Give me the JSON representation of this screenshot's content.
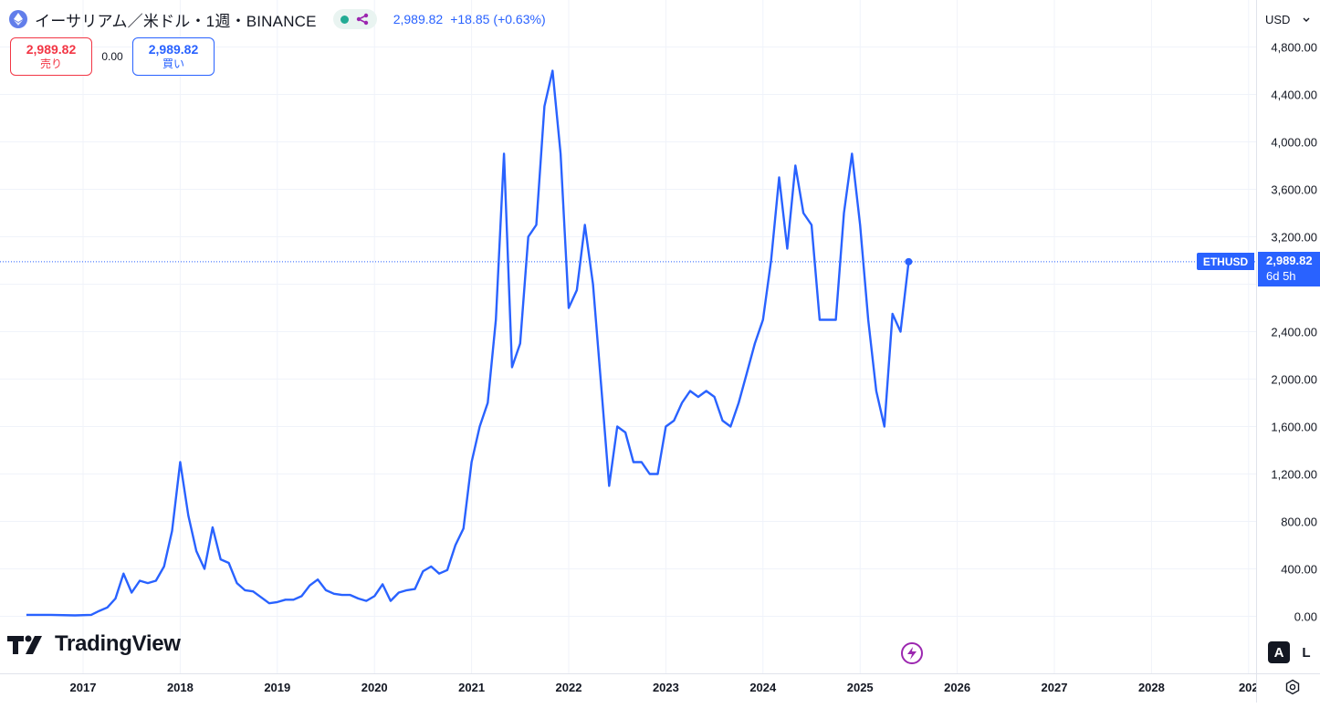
{
  "header": {
    "title": "イーサリアム／米ドル・1週・BINANCE",
    "symbol_icon": "ethereum-icon",
    "indicator_icon": "share-nodes-icon",
    "last_price": "2,989.82",
    "change": "+18.85",
    "change_pct": "(+0.63%)"
  },
  "trade": {
    "sell_price": "2,989.82",
    "sell_label": "売り",
    "spread": "0.00",
    "buy_price": "2,989.82",
    "buy_label": "買い"
  },
  "price_scale": {
    "currency": "USD",
    "tick_labels": [
      "4,800.00",
      "4,400.00",
      "4,000.00",
      "3,600.00",
      "3,200.00",
      "2,400.00",
      "2,000.00",
      "1,600.00",
      "1,200.00",
      "800.00",
      "400.00",
      "0.00"
    ],
    "last_price_label": "2,989.82",
    "countdown": "6d 5h",
    "series_tag": "ETHUSD"
  },
  "time_scale": {
    "tick_labels": [
      "2017",
      "2018",
      "2019",
      "2020",
      "2021",
      "2022",
      "2023",
      "2024",
      "2025",
      "2026",
      "2027",
      "2028",
      "202"
    ]
  },
  "buttons": {
    "auto_label": "A",
    "log_label": "L"
  },
  "branding": {
    "logo_text": "TradingView"
  },
  "colors": {
    "series": "#2962ff",
    "sell": "#f23645",
    "buy": "#2962ff",
    "grid": "#f0f3fa"
  },
  "chart_data": {
    "type": "line",
    "series": [
      {
        "name": "ETHUSD",
        "points": [
          [
            "2016-06",
            12
          ],
          [
            "2016-09",
            12
          ],
          [
            "2016-12",
            8
          ],
          [
            "2017-02",
            12
          ],
          [
            "2017-03",
            45
          ],
          [
            "2017-04",
            75
          ],
          [
            "2017-05",
            150
          ],
          [
            "2017-06",
            360
          ],
          [
            "2017-07",
            200
          ],
          [
            "2017-08",
            300
          ],
          [
            "2017-09",
            280
          ],
          [
            "2017-10",
            300
          ],
          [
            "2017-11",
            420
          ],
          [
            "2017-12",
            720
          ],
          [
            "2018-01",
            1300
          ],
          [
            "2018-02",
            850
          ],
          [
            "2018-03",
            550
          ],
          [
            "2018-04",
            400
          ],
          [
            "2018-05",
            750
          ],
          [
            "2018-06",
            480
          ],
          [
            "2018-07",
            450
          ],
          [
            "2018-08",
            280
          ],
          [
            "2018-09",
            220
          ],
          [
            "2018-10",
            210
          ],
          [
            "2018-11",
            160
          ],
          [
            "2018-12",
            110
          ],
          [
            "2019-01",
            120
          ],
          [
            "2019-02",
            140
          ],
          [
            "2019-03",
            140
          ],
          [
            "2019-04",
            170
          ],
          [
            "2019-05",
            260
          ],
          [
            "2019-06",
            310
          ],
          [
            "2019-07",
            220
          ],
          [
            "2019-08",
            190
          ],
          [
            "2019-09",
            180
          ],
          [
            "2019-10",
            180
          ],
          [
            "2019-11",
            150
          ],
          [
            "2019-12",
            130
          ],
          [
            "2020-01",
            170
          ],
          [
            "2020-02",
            270
          ],
          [
            "2020-03",
            130
          ],
          [
            "2020-04",
            200
          ],
          [
            "2020-05",
            220
          ],
          [
            "2020-06",
            230
          ],
          [
            "2020-07",
            380
          ],
          [
            "2020-08",
            420
          ],
          [
            "2020-09",
            360
          ],
          [
            "2020-10",
            390
          ],
          [
            "2020-11",
            600
          ],
          [
            "2020-12",
            740
          ],
          [
            "2021-01",
            1300
          ],
          [
            "2021-02",
            1600
          ],
          [
            "2021-03",
            1800
          ],
          [
            "2021-04",
            2500
          ],
          [
            "2021-05",
            3900
          ],
          [
            "2021-06",
            2100
          ],
          [
            "2021-07",
            2300
          ],
          [
            "2021-08",
            3200
          ],
          [
            "2021-09",
            3300
          ],
          [
            "2021-10",
            4300
          ],
          [
            "2021-11",
            4600
          ],
          [
            "2021-12",
            3900
          ],
          [
            "2022-01",
            2600
          ],
          [
            "2022-02",
            2750
          ],
          [
            "2022-03",
            3300
          ],
          [
            "2022-04",
            2800
          ],
          [
            "2022-05",
            1950
          ],
          [
            "2022-06",
            1100
          ],
          [
            "2022-07",
            1600
          ],
          [
            "2022-08",
            1550
          ],
          [
            "2022-09",
            1300
          ],
          [
            "2022-10",
            1300
          ],
          [
            "2022-11",
            1200
          ],
          [
            "2022-12",
            1200
          ],
          [
            "2023-01",
            1600
          ],
          [
            "2023-02",
            1650
          ],
          [
            "2023-03",
            1800
          ],
          [
            "2023-04",
            1900
          ],
          [
            "2023-05",
            1850
          ],
          [
            "2023-06",
            1900
          ],
          [
            "2023-07",
            1850
          ],
          [
            "2023-08",
            1650
          ],
          [
            "2023-09",
            1600
          ],
          [
            "2023-10",
            1800
          ],
          [
            "2023-11",
            2050
          ],
          [
            "2023-12",
            2300
          ],
          [
            "2024-01",
            2500
          ],
          [
            "2024-02",
            3000
          ],
          [
            "2024-03",
            3700
          ],
          [
            "2024-04",
            3100
          ],
          [
            "2024-05",
            3800
          ],
          [
            "2024-06",
            3400
          ],
          [
            "2024-07",
            3300
          ],
          [
            "2024-08",
            2500
          ],
          [
            "2024-09",
            2500
          ],
          [
            "2024-10",
            2500
          ],
          [
            "2024-11",
            3400
          ],
          [
            "2024-12",
            3900
          ],
          [
            "2025-01",
            3300
          ],
          [
            "2025-02",
            2500
          ],
          [
            "2025-03",
            1900
          ],
          [
            "2025-04",
            1600
          ],
          [
            "2025-05",
            2550
          ],
          [
            "2025-06",
            2400
          ],
          [
            "2025-07",
            2990
          ]
        ]
      }
    ],
    "ylim": [
      0,
      5000
    ],
    "xlim": [
      "2016-04",
      "2029-01"
    ],
    "grid": true,
    "last_value": 2989.82
  }
}
